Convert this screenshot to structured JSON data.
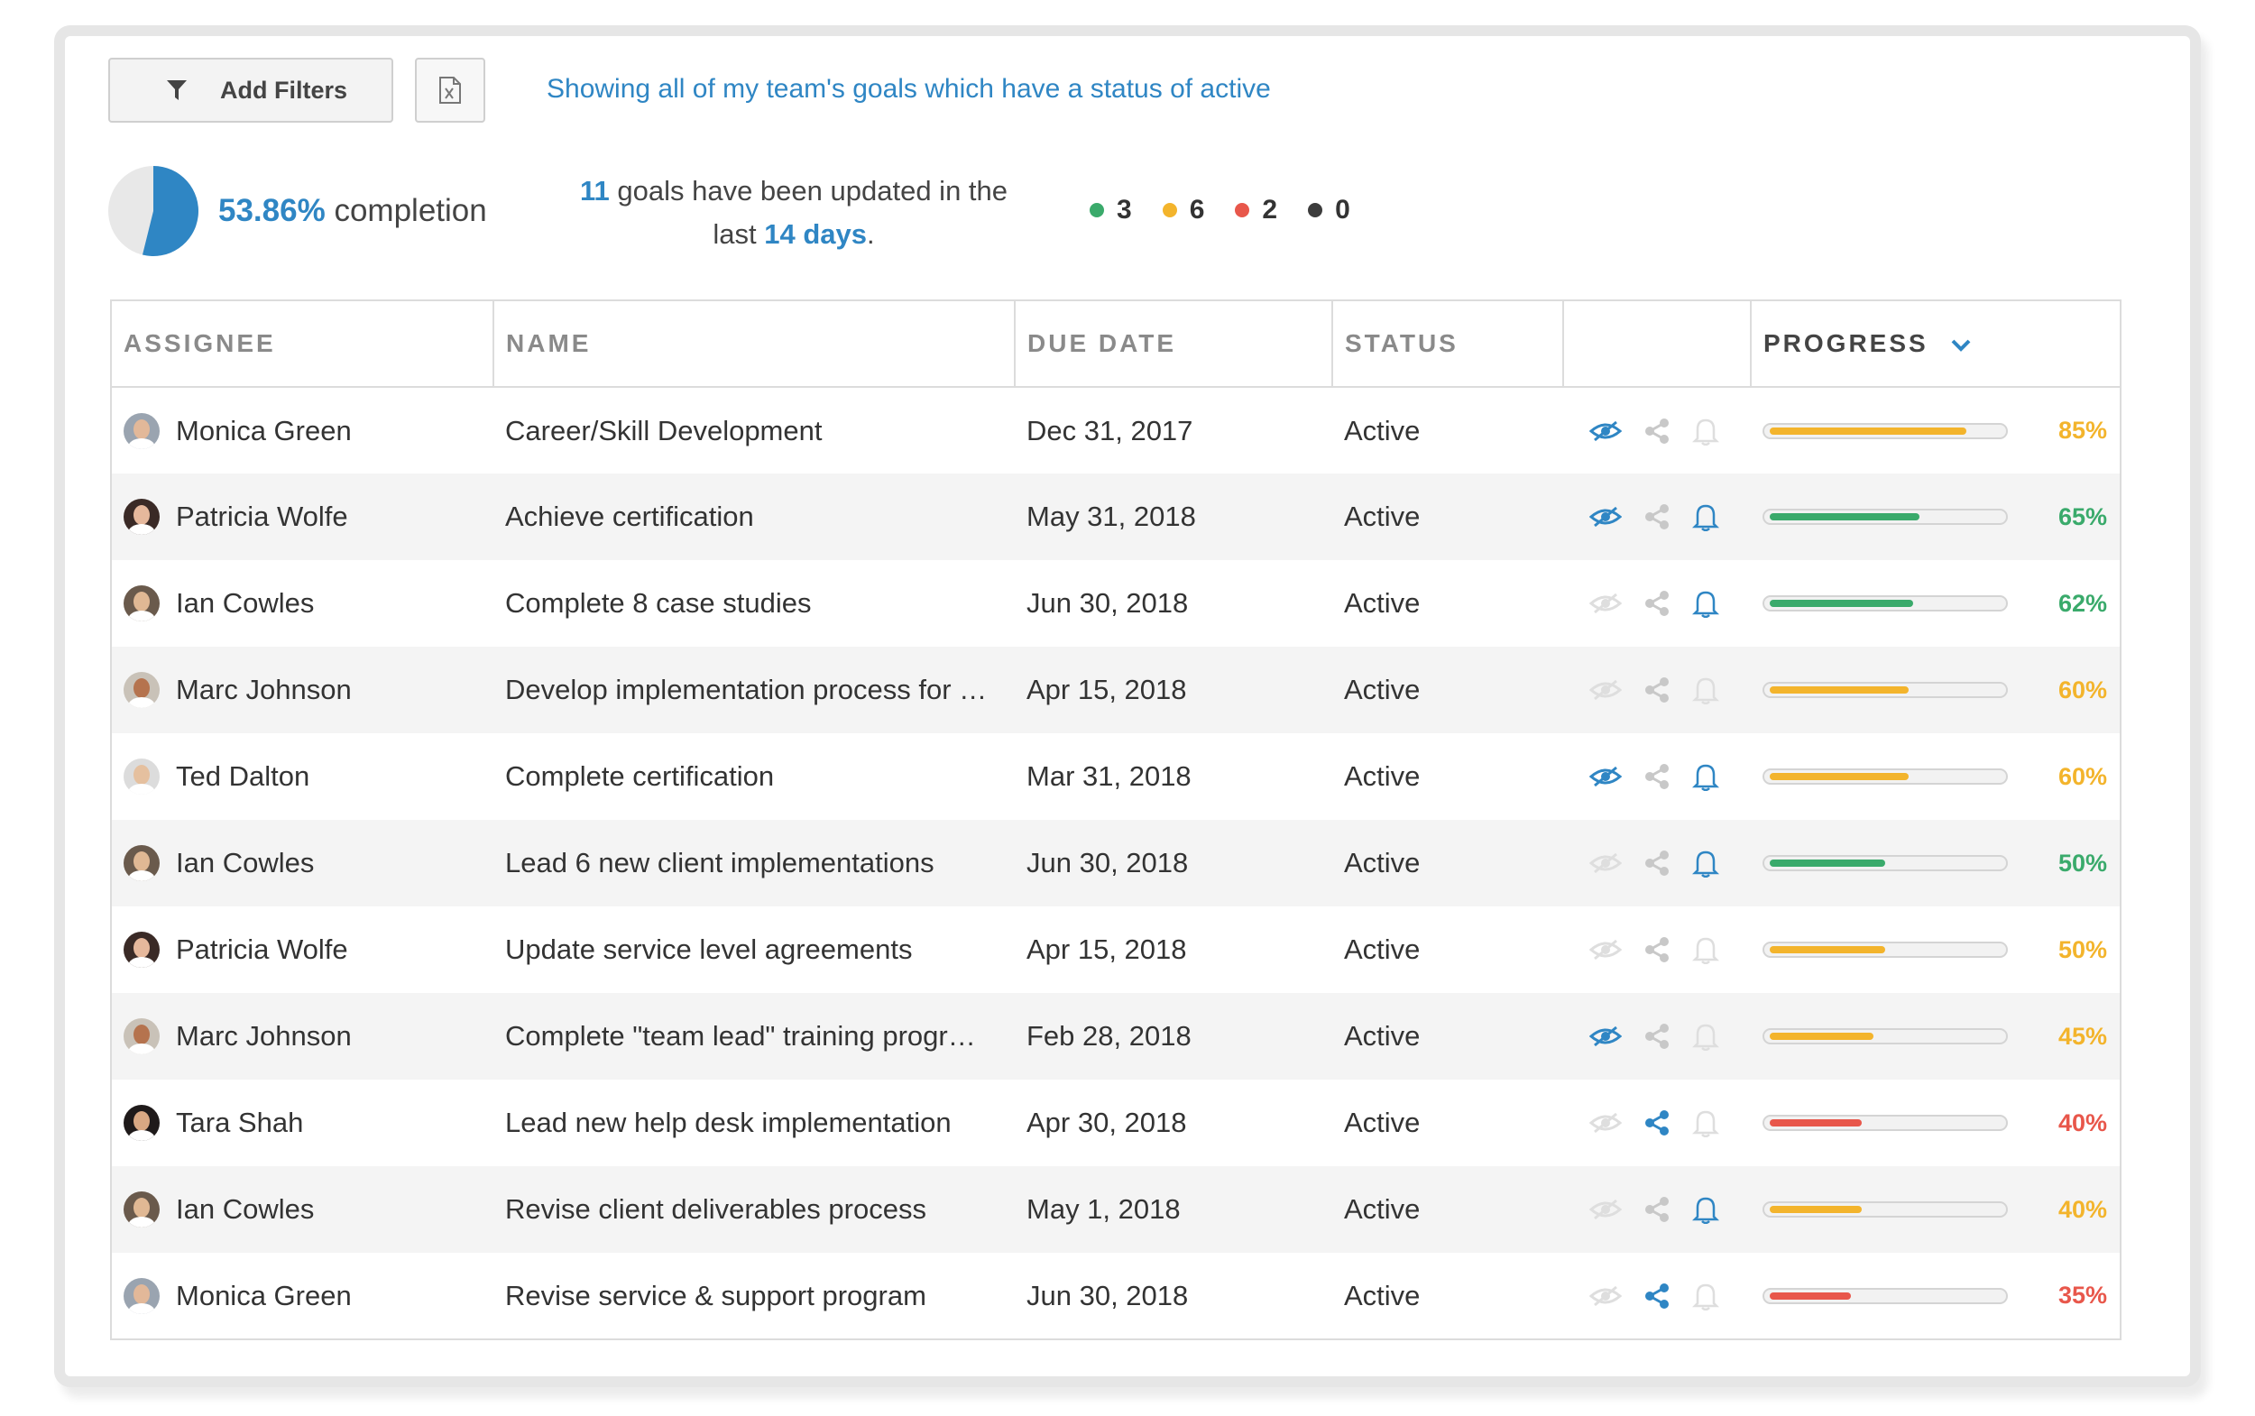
{
  "toolbar": {
    "add_filters_label": "Add Filters",
    "filter_description": "Showing all of my team's goals which have a status of active"
  },
  "summary": {
    "completion_pct": "53.86%",
    "completion_word": "completion",
    "completion_fraction": 0.5386,
    "updated_count": "11",
    "updated_text_1": "goals have been updated in the",
    "updated_text_2": "last",
    "updated_days": "14 days",
    "updated_period": ".",
    "status_counts": [
      {
        "color": "#3aaa6b",
        "value": "3"
      },
      {
        "color": "#f3b42c",
        "value": "6"
      },
      {
        "color": "#e8574b",
        "value": "2"
      },
      {
        "color": "#3c3c3c",
        "value": "0"
      }
    ]
  },
  "table": {
    "headers": {
      "assignee": "ASSIGNEE",
      "name": "NAME",
      "due_date": "DUE DATE",
      "status": "STATUS",
      "actions": "",
      "progress": "PROGRESS"
    },
    "rows": [
      {
        "assignee": "Monica Green",
        "name": "Career/Skill Development",
        "due": "Dec 31, 2017",
        "status": "Active",
        "progress": "85%",
        "value": 0.85,
        "color": "#f3b42c",
        "eye": true,
        "share": false,
        "bell": false,
        "avatar_bg": "#9aa4b0",
        "avatar_face": "#e2b899"
      },
      {
        "assignee": "Patricia Wolfe",
        "name": "Achieve certification",
        "due": "May 31, 2018",
        "status": "Active",
        "progress": "65%",
        "value": 0.65,
        "color": "#3aaa6b",
        "eye": true,
        "share": false,
        "bell": true,
        "avatar_bg": "#3a2a26",
        "avatar_face": "#e6b89c"
      },
      {
        "assignee": "Ian Cowles",
        "name": "Complete 8 case studies",
        "due": "Jun 30, 2018",
        "status": "Active",
        "progress": "62%",
        "value": 0.62,
        "color": "#3aaa6b",
        "eye": false,
        "share": false,
        "bell": true,
        "avatar_bg": "#6a5a4c",
        "avatar_face": "#e0b894"
      },
      {
        "assignee": "Marc Johnson",
        "name": "Develop implementation process for …",
        "due": "Apr 15, 2018",
        "status": "Active",
        "progress": "60%",
        "value": 0.6,
        "color": "#f3b42c",
        "eye": false,
        "share": false,
        "bell": false,
        "avatar_bg": "#c9c2b8",
        "avatar_face": "#b5734e"
      },
      {
        "assignee": "Ted Dalton",
        "name": "Complete certification",
        "due": "Mar 31, 2018",
        "status": "Active",
        "progress": "60%",
        "value": 0.6,
        "color": "#f3b42c",
        "eye": true,
        "share": false,
        "bell": true,
        "avatar_bg": "#dcdcdc",
        "avatar_face": "#e5c09f"
      },
      {
        "assignee": "Ian Cowles",
        "name": "Lead 6 new client implementations",
        "due": "Jun 30, 2018",
        "status": "Active",
        "progress": "50%",
        "value": 0.5,
        "color": "#3aaa6b",
        "eye": false,
        "share": false,
        "bell": true,
        "avatar_bg": "#6a5a4c",
        "avatar_face": "#e0b894"
      },
      {
        "assignee": "Patricia Wolfe",
        "name": "Update service level agreements",
        "due": "Apr 15, 2018",
        "status": "Active",
        "progress": "50%",
        "value": 0.5,
        "color": "#f3b42c",
        "eye": false,
        "share": false,
        "bell": false,
        "avatar_bg": "#3a2a26",
        "avatar_face": "#e6b89c"
      },
      {
        "assignee": "Marc Johnson",
        "name": "Complete \"team lead\" training progr…",
        "due": "Feb 28, 2018",
        "status": "Active",
        "progress": "45%",
        "value": 0.45,
        "color": "#f3b42c",
        "eye": true,
        "share": false,
        "bell": false,
        "avatar_bg": "#c9c2b8",
        "avatar_face": "#b5734e"
      },
      {
        "assignee": "Tara Shah",
        "name": "Lead new help desk implementation",
        "due": "Apr 30, 2018",
        "status": "Active",
        "progress": "40%",
        "value": 0.4,
        "color": "#e8574b",
        "eye": false,
        "share": true,
        "bell": false,
        "avatar_bg": "#1f1a1a",
        "avatar_face": "#d9a883"
      },
      {
        "assignee": "Ian Cowles",
        "name": "Revise client deliverables process",
        "due": "May 1, 2018",
        "status": "Active",
        "progress": "40%",
        "value": 0.4,
        "color": "#f3b42c",
        "eye": false,
        "share": false,
        "bell": true,
        "avatar_bg": "#6a5a4c",
        "avatar_face": "#e0b894"
      },
      {
        "assignee": "Monica Green",
        "name": "Revise service & support program",
        "due": "Jun 30, 2018",
        "status": "Active",
        "progress": "35%",
        "value": 0.35,
        "color": "#e8574b",
        "eye": false,
        "share": true,
        "bell": false,
        "avatar_bg": "#9aa4b0",
        "avatar_face": "#e2b899"
      }
    ]
  },
  "colors": {
    "accent": "#2f86c4",
    "icon_inactive": "#dedede",
    "share_inactive": "#c8c8c8"
  }
}
